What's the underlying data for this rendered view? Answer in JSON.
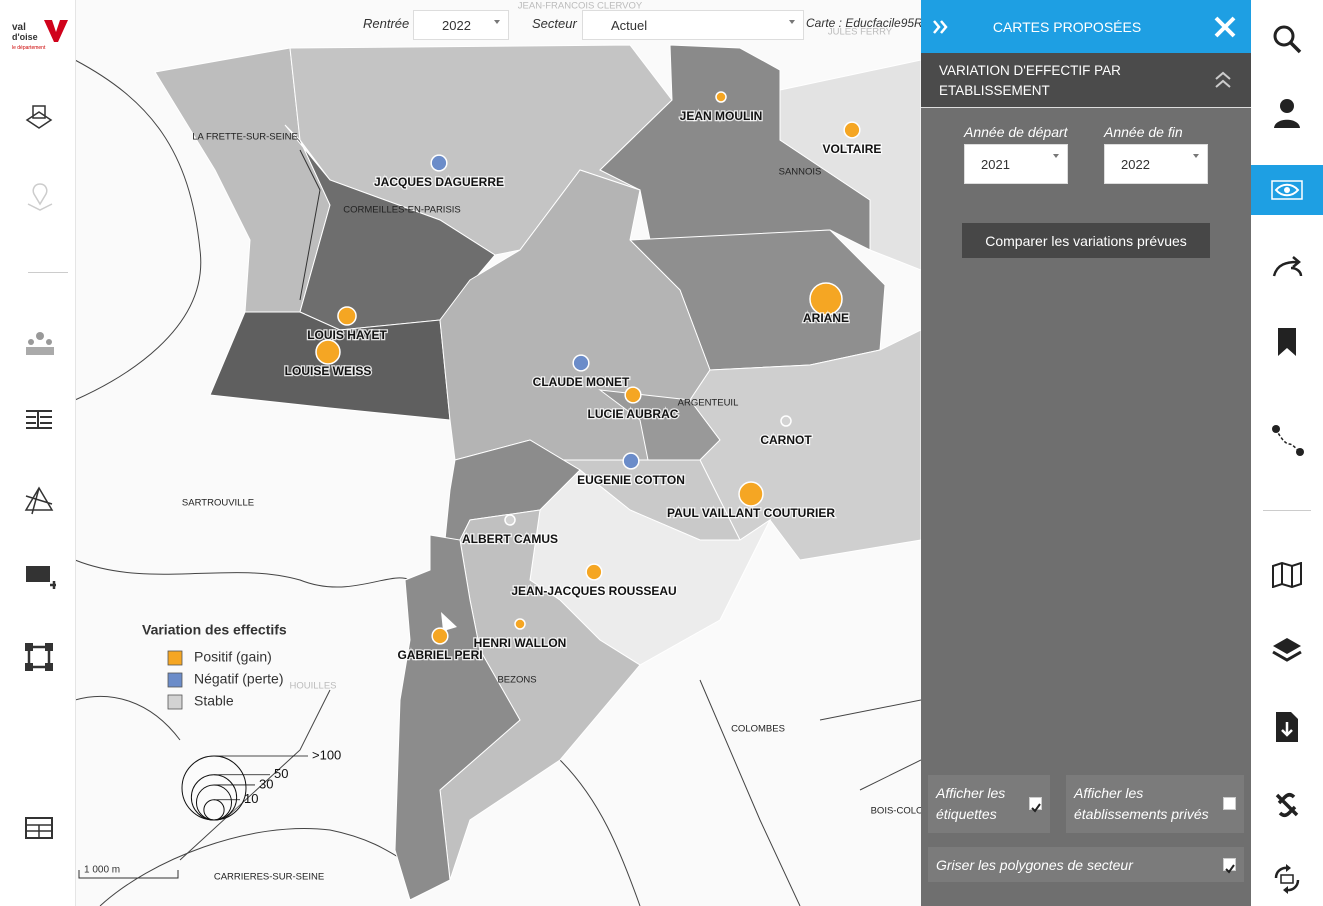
{
  "logo": {
    "line1": "val",
    "line2": "d'oise",
    "line3": "le département"
  },
  "toolbar": {
    "rentree_label": "Rentrée",
    "rentree_value": "2022",
    "secteur_label": "Secteur",
    "secteur_value": "Actuel",
    "carte": "Carte : Educfacile95R"
  },
  "map": {
    "background_labels": [
      "JEAN-FRANCOIS CLERVOY",
      "JULES FERRY"
    ],
    "towns": [
      "LA FRETTE-SUR-SEINE",
      "CORMEILLES-EN-PARISIS",
      "SANNOIS",
      "ARGENTEUIL",
      "SARTROUVILLE",
      "HOUILLES",
      "BEZONS",
      "COLOMBES",
      "BOIS-COLO",
      "CARRIERES-SUR-SEINE"
    ],
    "schools": [
      {
        "name": "JEAN MOULIN",
        "variation": 2
      },
      {
        "name": "VOLTAIRE",
        "variation": 6
      },
      {
        "name": "JACQUES DAGUERRE",
        "variation": -6
      },
      {
        "name": "LOUIS HAYET",
        "variation": 8
      },
      {
        "name": "LOUISE WEISS",
        "variation": 14
      },
      {
        "name": "ARIANE",
        "variation": 25
      },
      {
        "name": "CLAUDE MONET",
        "variation": -6
      },
      {
        "name": "LUCIE AUBRAC",
        "variation": 6
      },
      {
        "name": "CARNOT",
        "variation": 0
      },
      {
        "name": "EUGENIE COTTON",
        "variation": -6
      },
      {
        "name": "PAUL VAILLANT COUTURIER",
        "variation": 14
      },
      {
        "name": "ALBERT CAMUS",
        "variation": 0
      },
      {
        "name": "JEAN-JACQUES ROUSSEAU",
        "variation": 6
      },
      {
        "name": "HENRI WALLON",
        "variation": 2
      },
      {
        "name": "GABRIEL PERI",
        "variation": 6
      }
    ],
    "scale_bar": "1 000 m"
  },
  "legend": {
    "title": "Variation des effectifs",
    "items": [
      {
        "label": "Positif (gain)",
        "color": "#f5a623"
      },
      {
        "label": "Négatif (perte)",
        "color": "#6b8cc9"
      },
      {
        "label": "Stable",
        "color": "#d3d3d3"
      }
    ],
    "sizes": [
      {
        "value": 100,
        "label": ">100"
      },
      50,
      30,
      10
    ]
  },
  "panel": {
    "title": "CARTES PROPOSÉES",
    "section": "VARIATION D'EFFECTIF PAR ETABLISSEMENT",
    "start_label": "Année de départ",
    "start_value": "2021",
    "end_label": "Année de fin",
    "end_value": "2022",
    "button": "Comparer les variations prévues",
    "options": [
      {
        "label": "Afficher les étiquettes",
        "checked": true
      },
      {
        "label": "Afficher les établissements privés",
        "checked": false
      },
      {
        "label": "Griser les polygones de secteur",
        "checked": true
      }
    ]
  }
}
